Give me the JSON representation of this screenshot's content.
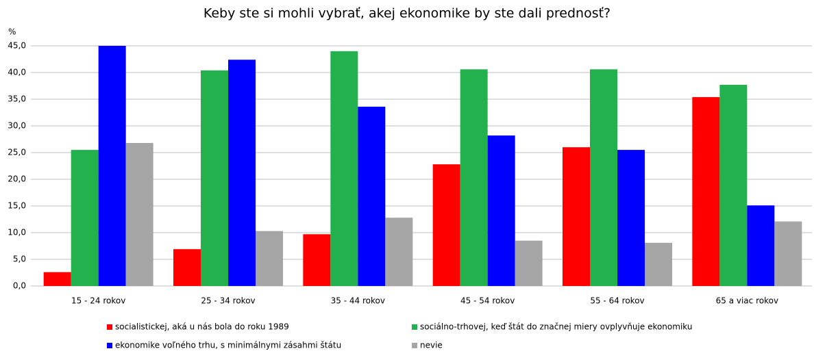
{
  "chart_data": {
    "type": "bar",
    "title": "Keby ste si mohli vybrať, akej ekonomike by ste dali prednosť?",
    "y_label": "%",
    "categories": [
      "15 - 24 rokov",
      "25 - 34 rokov",
      "35 - 44 rokov",
      "45 - 54 rokov",
      "55 - 64 rokov",
      "65 a viac rokov"
    ],
    "series": [
      {
        "name": "socialistickej, aká u nás bola do roku 1989",
        "color": "#ff0000",
        "values": [
          2.6,
          6.9,
          9.7,
          22.8,
          26.0,
          35.4
        ]
      },
      {
        "name": "sociálno-trhovej, keď štát do značnej miery ovplyvňuje ekonomiku",
        "color": "#22b14c",
        "values": [
          25.5,
          40.4,
          44.0,
          40.6,
          40.6,
          37.7
        ]
      },
      {
        "name": "ekonomike voľného trhu, s minimálnymi zásahmi štátu",
        "color": "#0000ff",
        "values": [
          45.0,
          42.4,
          33.6,
          28.2,
          25.5,
          15.1
        ]
      },
      {
        "name": "nevie",
        "color": "#a6a6a6",
        "values": [
          26.8,
          10.3,
          12.8,
          8.5,
          8.1,
          12.1
        ]
      }
    ],
    "ylim": [
      0,
      45
    ],
    "yticks": [
      {
        "value": 0,
        "label": "0,0"
      },
      {
        "value": 5,
        "label": "5,0"
      },
      {
        "value": 10,
        "label": "10,0"
      },
      {
        "value": 15,
        "label": "15,0"
      },
      {
        "value": 20,
        "label": "20,0"
      },
      {
        "value": 25,
        "label": "25,0"
      },
      {
        "value": 30,
        "label": "30,0"
      },
      {
        "value": 35,
        "label": "35,0"
      },
      {
        "value": 40,
        "label": "40,0"
      },
      {
        "value": 45,
        "label": "45,0"
      }
    ],
    "grid": true
  }
}
